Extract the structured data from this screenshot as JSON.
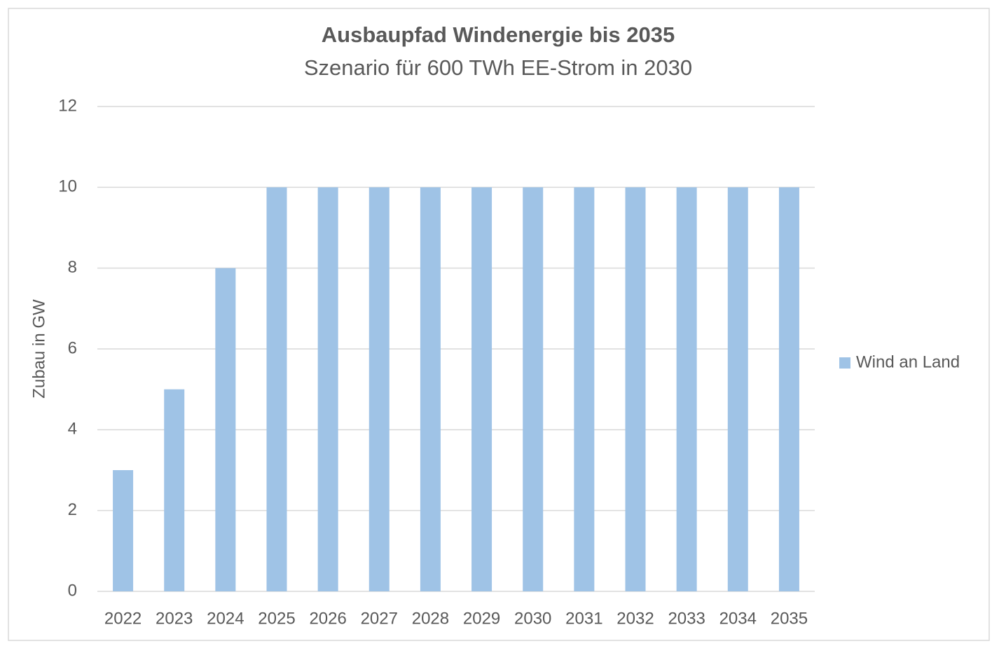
{
  "chart_data": {
    "type": "bar",
    "title": "Ausbaupfad Windenergie bis 2035",
    "subtitle": "Szenario für 600 TWh EE-Strom in 2030",
    "y_label": "Zubau in GW",
    "categories": [
      "2022",
      "2023",
      "2024",
      "2025",
      "2026",
      "2027",
      "2028",
      "2029",
      "2030",
      "2031",
      "2032",
      "2033",
      "2034",
      "2035"
    ],
    "series": [
      {
        "name": "Wind an Land",
        "color": "#9fc3e6",
        "values": [
          3,
          5,
          8,
          10,
          10,
          10,
          10,
          10,
          10,
          10,
          10,
          10,
          10,
          10
        ]
      }
    ],
    "ylim": [
      0,
      12
    ],
    "yticks": [
      0,
      2,
      4,
      6,
      8,
      10,
      12
    ],
    "grid": true,
    "legend": "right"
  }
}
